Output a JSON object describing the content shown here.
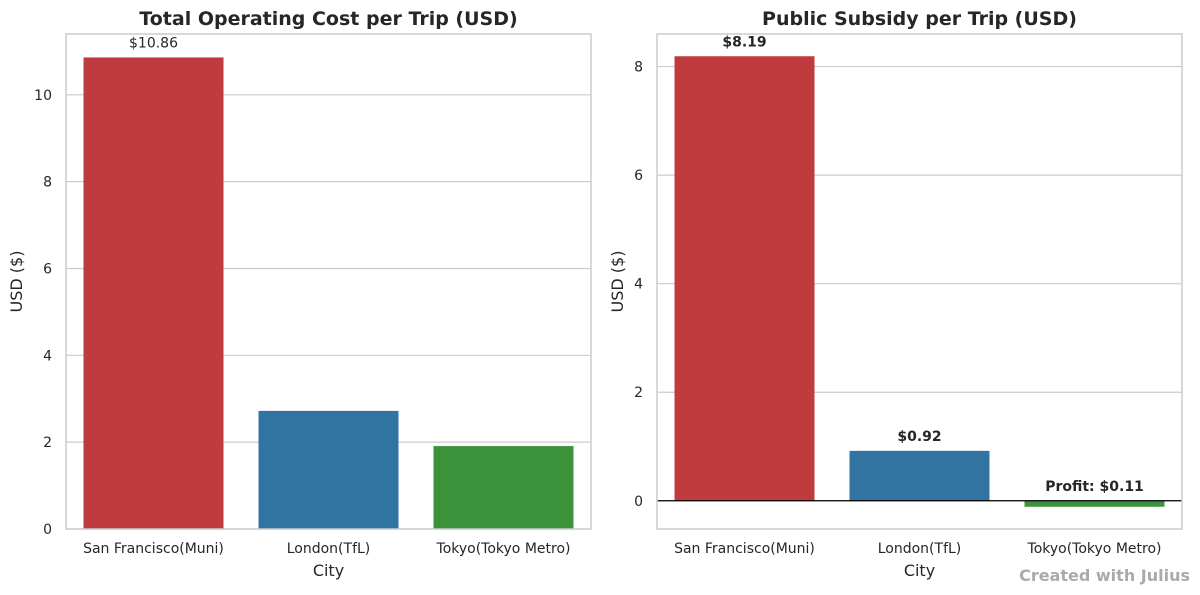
{
  "watermark": "Created with Julius",
  "chart_data": [
    {
      "type": "bar",
      "title": "Total Operating Cost per Trip (USD)",
      "xlabel": "City",
      "ylabel": "USD ($)",
      "categories": [
        "San Francisco(Muni)",
        "London(TfL)",
        "Tokyo(Tokyo Metro)"
      ],
      "values": [
        10.86,
        2.72,
        1.91
      ],
      "colors": [
        "#c03b3e",
        "#3274a1",
        "#3a923a"
      ],
      "data_labels": [
        "$10.86",
        "",
        ""
      ],
      "label_weight": "normal",
      "ylim": [
        0,
        11.4
      ],
      "yticks": [
        0,
        2,
        4,
        6,
        8,
        10
      ],
      "grid": true
    },
    {
      "type": "bar",
      "title": "Public Subsidy per Trip (USD)",
      "xlabel": "City",
      "ylabel": "USD ($)",
      "categories": [
        "San Francisco(Muni)",
        "London(TfL)",
        "Tokyo(Tokyo Metro)"
      ],
      "values": [
        8.19,
        0.92,
        -0.11
      ],
      "colors": [
        "#c03b3e",
        "#3274a1",
        "#3a923a"
      ],
      "data_labels": [
        "$8.19",
        "$0.92",
        "Profit: $0.11"
      ],
      "label_weight": "bold",
      "ylim": [
        -0.52,
        8.6
      ],
      "yticks": [
        0,
        2,
        4,
        6,
        8
      ],
      "zero_line": true,
      "grid": true
    }
  ]
}
